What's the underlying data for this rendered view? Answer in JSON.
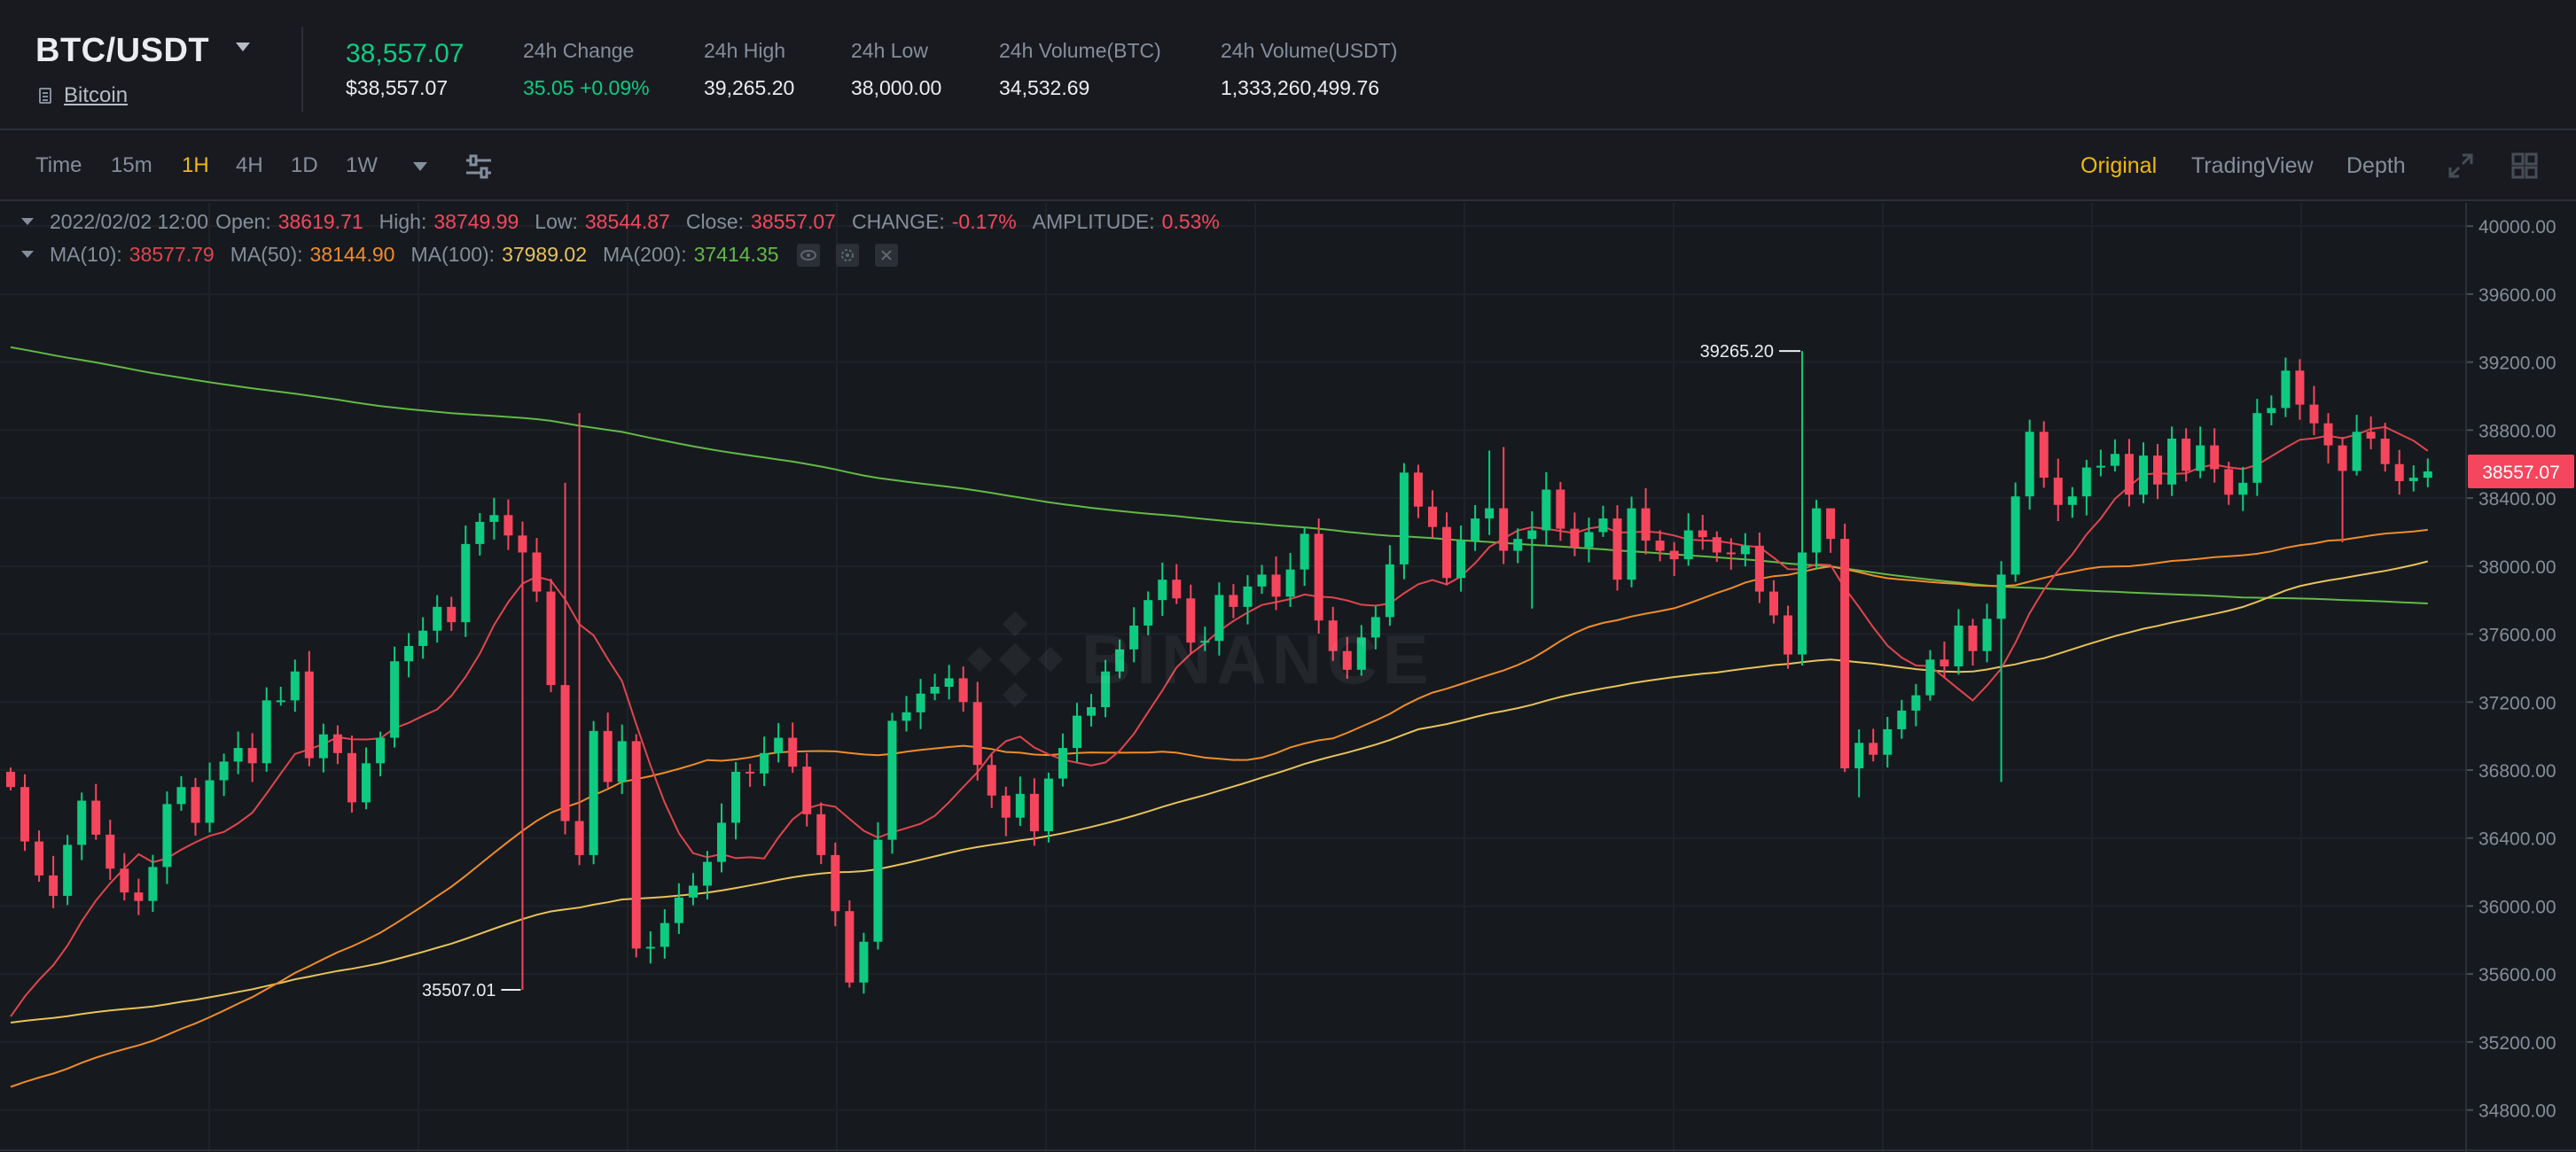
{
  "header": {
    "pair": "BTC/USDT",
    "coin_name": "Bitcoin",
    "last_price": "38,557.07",
    "last_price_usd": "$38,557.07",
    "stats": [
      {
        "label": "24h Change",
        "value": "35.05 +0.09%",
        "color": "up"
      },
      {
        "label": "24h High",
        "value": "39,265.20"
      },
      {
        "label": "24h Low",
        "value": "38,000.00"
      },
      {
        "label": "24h Volume(BTC)",
        "value": "34,532.69"
      },
      {
        "label": "24h Volume(USDT)",
        "value": "1,333,260,499.76"
      }
    ]
  },
  "toolbar": {
    "timeframes": [
      "Time",
      "15m",
      "1H",
      "4H",
      "1D",
      "1W"
    ],
    "active_timeframe": "1H",
    "views": [
      "Original",
      "TradingView",
      "Depth"
    ],
    "active_view": "Original"
  },
  "legend": {
    "datetime": "2022/02/02 12:00",
    "open_label": "Open:",
    "open": "38619.71",
    "high_label": "High:",
    "high": "38749.99",
    "low_label": "Low:",
    "low": "38544.87",
    "close_label": "Close:",
    "close": "38557.07",
    "change_label": "CHANGE:",
    "change": "-0.17%",
    "amplitude_label": "AMPLITUDE:",
    "amplitude": "0.53%",
    "ma10_label": "MA(10):",
    "ma10": "38577.79",
    "ma50_label": "MA(50):",
    "ma50": "38144.90",
    "ma100_label": "MA(100):",
    "ma100": "37989.02",
    "ma200_label": "MA(200):",
    "ma200": "37414.35"
  },
  "watermark": "BINANCE",
  "chart_data": {
    "type": "candlestick",
    "interval": "1H",
    "ylim": [
      34600,
      40100
    ],
    "y_ticks": [
      "40000.00",
      "39600.00",
      "39200.00",
      "38800.00",
      "38400.00",
      "38000.00",
      "37600.00",
      "37200.00",
      "36800.00",
      "36400.00",
      "36000.00",
      "35600.00",
      "35200.00",
      "34800.00"
    ],
    "current_price_label": "38557.07",
    "high_marker": {
      "value": "39265.20",
      "index": 126
    },
    "low_marker": {
      "value": "35507.01",
      "index": 36
    },
    "colors": {
      "up": "#0ecb81",
      "down": "#f6465d",
      "ma10": "#e0454f",
      "ma50": "#f08c2a",
      "ma100": "#e8c25a",
      "ma200": "#63b946"
    },
    "closes": [
      36700,
      36380,
      36180,
      36060,
      36360,
      36620,
      36420,
      36220,
      36080,
      36030,
      36230,
      36600,
      36700,
      36490,
      36740,
      36850,
      36930,
      36840,
      37210,
      37210,
      37380,
      36870,
      37010,
      36900,
      36610,
      36840,
      36990,
      37440,
      37530,
      37620,
      37760,
      37670,
      38130,
      38260,
      38300,
      38180,
      38080,
      37850,
      37300,
      36500,
      36300,
      37030,
      36730,
      36970,
      35750,
      35760,
      35900,
      36050,
      36120,
      36260,
      36490,
      36790,
      36780,
      36900,
      36990,
      36820,
      36540,
      36300,
      35970,
      35550,
      35790,
      36390,
      37090,
      37140,
      37250,
      37290,
      37340,
      37200,
      36830,
      36650,
      36520,
      36660,
      36440,
      36750,
      36930,
      37120,
      37170,
      37380,
      37510,
      37650,
      37800,
      37920,
      37810,
      37550,
      37560,
      37830,
      37760,
      37880,
      37950,
      37820,
      37980,
      38190,
      37680,
      37500,
      37390,
      37580,
      37700,
      38010,
      38550,
      38350,
      38230,
      37930,
      38150,
      38280,
      38340,
      38090,
      38160,
      38210,
      38450,
      38220,
      38110,
      38200,
      38280,
      37920,
      38340,
      38150,
      38090,
      38040,
      38210,
      38170,
      38080,
      38070,
      38120,
      37850,
      37710,
      37480,
      38080,
      38340,
      38160,
      36810,
      36960,
      36890,
      37040,
      37150,
      37240,
      37450,
      37410,
      37650,
      37500,
      37690,
      37950,
      38410,
      38790,
      38520,
      38360,
      38410,
      38580,
      38590,
      38660,
      38420,
      38650,
      38480,
      38750,
      38560,
      38710,
      38570,
      38420,
      38490,
      38900,
      38930,
      39150,
      38950,
      38840,
      38710,
      38560,
      38790,
      38750,
      38600,
      38500,
      38520,
      38557
    ]
  }
}
